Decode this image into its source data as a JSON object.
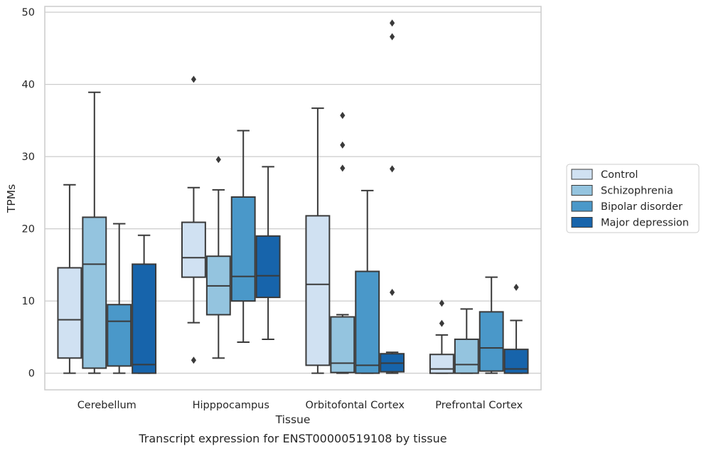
{
  "caption": "Transcript expression for ENST00000519108 by tissue",
  "chart_data": {
    "type": "box",
    "xlabel": "Tissue",
    "ylabel": "TPMs",
    "ylim": [
      -2.3,
      50.8
    ],
    "yticks": [
      0,
      10,
      20,
      30,
      40,
      50
    ],
    "grid": "horizontal",
    "legend_position": "right",
    "categories": [
      "Cerebellum",
      "Hipppocampus",
      "Orbitofontal Cortex",
      "Prefrontal Cortex"
    ],
    "series": [
      {
        "name": "Control",
        "color": "#d0e1f2",
        "boxes": [
          {
            "min": 0,
            "q1": 2.1,
            "median": 7.4,
            "q3": 14.6,
            "max": 26.1,
            "outliers": []
          },
          {
            "min": 7.0,
            "q1": 13.3,
            "median": 16.0,
            "q3": 20.9,
            "max": 25.7,
            "outliers": [
              40.7,
              1.8
            ]
          },
          {
            "min": 0,
            "q1": 1.1,
            "median": 12.3,
            "q3": 21.8,
            "max": 36.7,
            "outliers": []
          },
          {
            "min": 0,
            "q1": 0,
            "median": 0.6,
            "q3": 2.6,
            "max": 5.3,
            "outliers": [
              9.7,
              6.9
            ]
          }
        ]
      },
      {
        "name": "Schizophrenia",
        "color": "#94c4df",
        "boxes": [
          {
            "min": 0,
            "q1": 0.7,
            "median": 15.1,
            "q3": 21.6,
            "max": 38.9,
            "outliers": []
          },
          {
            "min": 2.1,
            "q1": 8.1,
            "median": 12.1,
            "q3": 16.2,
            "max": 25.4,
            "outliers": [
              29.6
            ]
          },
          {
            "min": 0,
            "q1": 0.1,
            "median": 1.4,
            "q3": 7.8,
            "max": 8.1,
            "outliers": [
              35.7,
              31.6,
              28.4
            ]
          },
          {
            "min": 0,
            "q1": 0,
            "median": 1.2,
            "q3": 4.7,
            "max": 8.9,
            "outliers": []
          }
        ]
      },
      {
        "name": "Bipolar disorder",
        "color": "#4a98c9",
        "boxes": [
          {
            "min": 0,
            "q1": 1.0,
            "median": 7.2,
            "q3": 9.5,
            "max": 20.7,
            "outliers": []
          },
          {
            "min": 4.3,
            "q1": 10.0,
            "median": 13.4,
            "q3": 24.4,
            "max": 33.6,
            "outliers": []
          },
          {
            "min": 0,
            "q1": 0,
            "median": 1.1,
            "q3": 14.1,
            "max": 25.3,
            "outliers": []
          },
          {
            "min": 0,
            "q1": 0.3,
            "median": 3.5,
            "q3": 8.5,
            "max": 13.3,
            "outliers": []
          }
        ]
      },
      {
        "name": "Major depression",
        "color": "#1764ab",
        "boxes": [
          {
            "min": 0,
            "q1": 0,
            "median": 1.2,
            "q3": 15.1,
            "max": 19.1,
            "outliers": []
          },
          {
            "min": 4.7,
            "q1": 10.5,
            "median": 13.5,
            "q3": 19.0,
            "max": 28.6,
            "outliers": []
          },
          {
            "min": 0,
            "q1": 0.2,
            "median": 1.4,
            "q3": 2.7,
            "max": 2.9,
            "outliers": [
              48.5,
              46.6,
              28.3,
              11.2
            ]
          },
          {
            "min": 0,
            "q1": 0,
            "median": 0.6,
            "q3": 3.3,
            "max": 7.3,
            "outliers": [
              11.9
            ]
          }
        ]
      }
    ]
  }
}
